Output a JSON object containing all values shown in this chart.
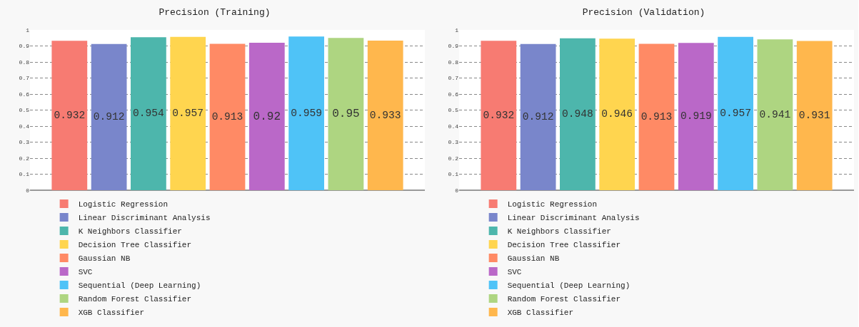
{
  "chart_data": [
    {
      "type": "bar",
      "title": "Precision (Training)",
      "categories": [
        null,
        null,
        null,
        null,
        null,
        null,
        null,
        null,
        null
      ],
      "ylim": [
        0,
        1
      ],
      "yticks": [
        0,
        0.1,
        0.2,
        0.3,
        0.4,
        0.5,
        0.6,
        0.7,
        0.8,
        0.9,
        1
      ],
      "grid": "y",
      "legend": "bottom",
      "data_labels": true,
      "series": [
        {
          "name": "Logistic Regression",
          "color": "#f77b72",
          "values": [
            0.932,
            null,
            null,
            null,
            null,
            null,
            null,
            null,
            null
          ]
        },
        {
          "name": "Linear Discriminant Analysis",
          "color": "#7986cb",
          "values": [
            null,
            0.912,
            null,
            null,
            null,
            null,
            null,
            null,
            null
          ]
        },
        {
          "name": "K Neighbors Classifier",
          "color": "#4db6ac",
          "values": [
            null,
            null,
            0.954,
            null,
            null,
            null,
            null,
            null,
            null
          ]
        },
        {
          "name": "Decision Tree Classifier",
          "color": "#ffd54f",
          "values": [
            null,
            null,
            null,
            0.957,
            null,
            null,
            null,
            null,
            null
          ]
        },
        {
          "name": "Gaussian NB",
          "color": "#ff8a65",
          "values": [
            null,
            null,
            null,
            null,
            0.913,
            null,
            null,
            null,
            null
          ]
        },
        {
          "name": "SVC",
          "color": "#ba68c8",
          "values": [
            null,
            null,
            null,
            null,
            null,
            0.92,
            null,
            null,
            null
          ]
        },
        {
          "name": "Sequential (Deep Learning)",
          "color": "#4fc3f7",
          "values": [
            null,
            null,
            null,
            null,
            null,
            null,
            0.959,
            null,
            null
          ]
        },
        {
          "name": "Random Forest Classifier",
          "color": "#aed581",
          "values": [
            null,
            null,
            null,
            null,
            null,
            null,
            null,
            0.95,
            null
          ]
        },
        {
          "name": "XGB Classifier",
          "color": "#ffb74d",
          "values": [
            null,
            null,
            null,
            null,
            null,
            null,
            null,
            null,
            0.933
          ]
        }
      ]
    },
    {
      "type": "bar",
      "title": "Precision (Validation)",
      "categories": [
        null,
        null,
        null,
        null,
        null,
        null,
        null,
        null,
        null
      ],
      "ylim": [
        0,
        1
      ],
      "yticks": [
        0,
        0.1,
        0.2,
        0.3,
        0.4,
        0.5,
        0.6,
        0.7,
        0.8,
        0.9,
        1
      ],
      "grid": "y",
      "legend": "bottom",
      "data_labels": true,
      "series": [
        {
          "name": "Logistic Regression",
          "color": "#f77b72",
          "values": [
            0.932,
            null,
            null,
            null,
            null,
            null,
            null,
            null,
            null
          ]
        },
        {
          "name": "Linear Discriminant Analysis",
          "color": "#7986cb",
          "values": [
            null,
            0.912,
            null,
            null,
            null,
            null,
            null,
            null,
            null
          ]
        },
        {
          "name": "K Neighbors Classifier",
          "color": "#4db6ac",
          "values": [
            null,
            null,
            0.948,
            null,
            null,
            null,
            null,
            null,
            null
          ]
        },
        {
          "name": "Decision Tree Classifier",
          "color": "#ffd54f",
          "values": [
            null,
            null,
            null,
            0.946,
            null,
            null,
            null,
            null,
            null
          ]
        },
        {
          "name": "Gaussian NB",
          "color": "#ff8a65",
          "values": [
            null,
            null,
            null,
            null,
            0.913,
            null,
            null,
            null,
            null
          ]
        },
        {
          "name": "SVC",
          "color": "#ba68c8",
          "values": [
            null,
            null,
            null,
            null,
            null,
            0.919,
            null,
            null,
            null
          ]
        },
        {
          "name": "Sequential (Deep Learning)",
          "color": "#4fc3f7",
          "values": [
            null,
            null,
            null,
            null,
            null,
            null,
            0.957,
            null,
            null
          ]
        },
        {
          "name": "Random Forest Classifier",
          "color": "#aed581",
          "values": [
            null,
            null,
            null,
            null,
            null,
            null,
            null,
            0.941,
            null
          ]
        },
        {
          "name": "XGB Classifier",
          "color": "#ffb74d",
          "values": [
            null,
            null,
            null,
            null,
            null,
            null,
            null,
            null,
            0.931
          ]
        }
      ]
    }
  ]
}
